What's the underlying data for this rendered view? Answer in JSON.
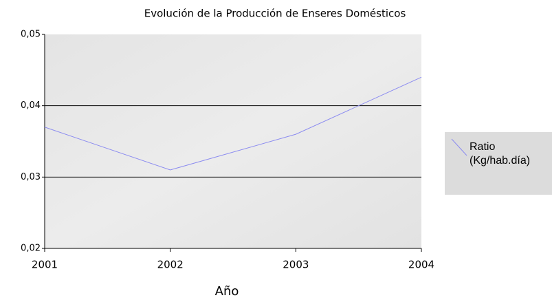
{
  "chart_data": {
    "type": "line",
    "title": "Evolución de la Producción de Enseres Domésticos",
    "x_label": "Año",
    "categories": [
      "2001",
      "2002",
      "2003",
      "2004"
    ],
    "series": [
      {
        "name": "Ratio (Kg/hab.día)",
        "color": "#8c8cf0",
        "values": [
          0.037,
          0.031,
          0.036,
          0.044
        ]
      }
    ],
    "ylim": [
      0.02,
      0.05
    ],
    "yticks": [
      {
        "value": 0.02,
        "label": "0,02"
      },
      {
        "value": 0.03,
        "label": "0,03"
      },
      {
        "value": 0.04,
        "label": "0,04"
      },
      {
        "value": 0.05,
        "label": "0,05"
      }
    ],
    "grid": true,
    "legend": "right"
  }
}
